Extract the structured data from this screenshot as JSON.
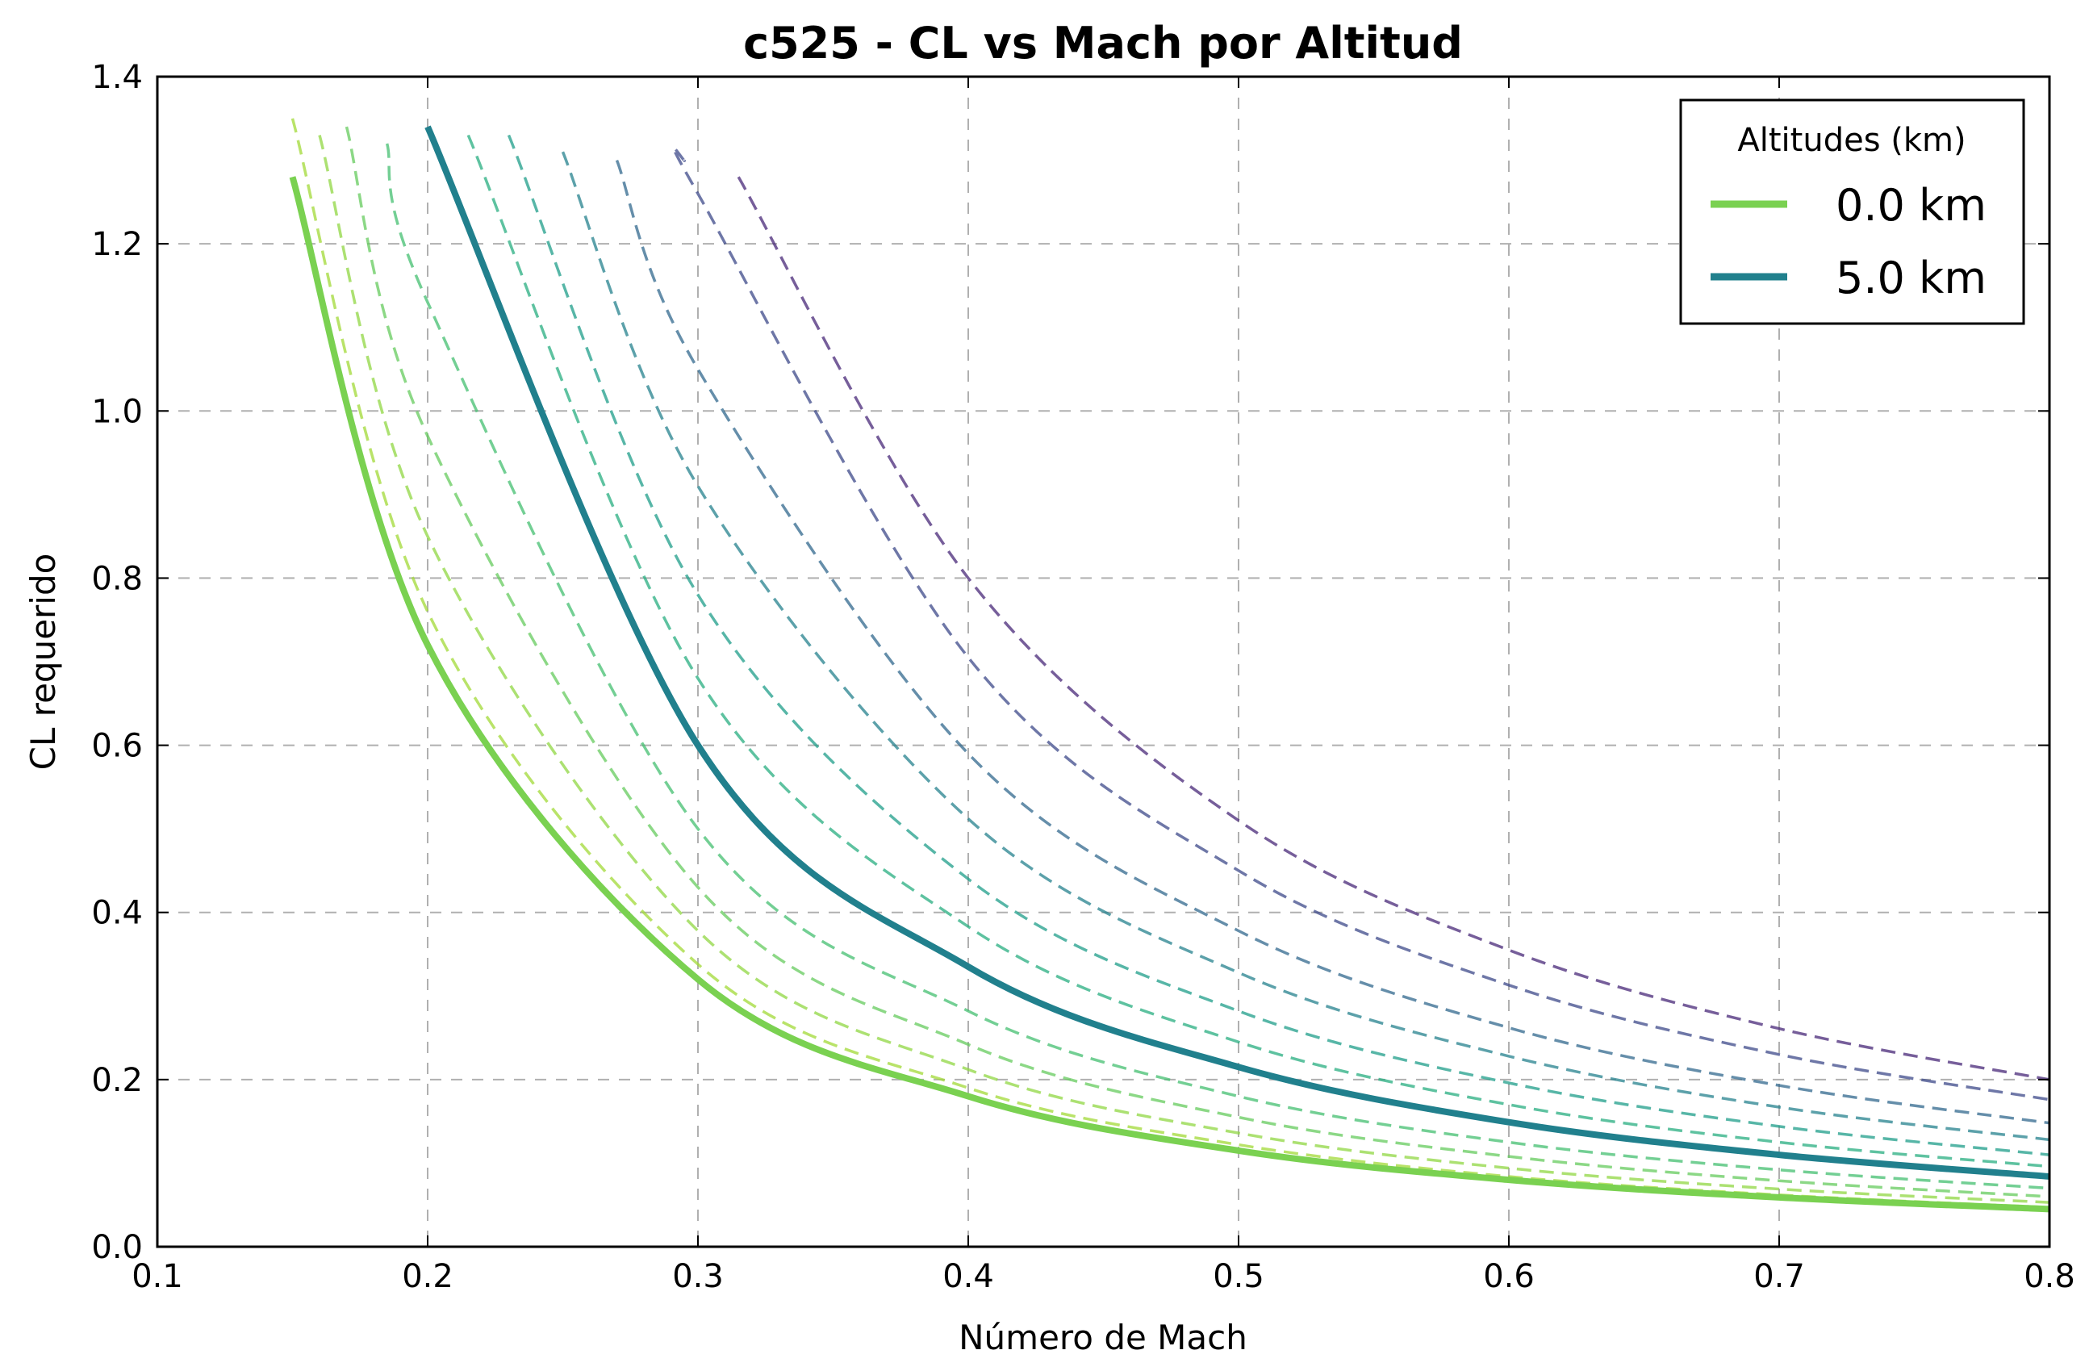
{
  "chart_data": {
    "type": "line",
    "title": "c525 - CL vs Mach por Altitud",
    "xlabel": "Número de Mach",
    "ylabel": "CL requerido",
    "xlim": [
      0.1,
      0.8
    ],
    "ylim": [
      0.0,
      1.4
    ],
    "xticks": [
      "0.1",
      "0.2",
      "0.3",
      "0.4",
      "0.5",
      "0.6",
      "0.7",
      "0.8"
    ],
    "yticks": [
      "0.0",
      "0.2",
      "0.4",
      "0.6",
      "0.8",
      "1.0",
      "1.2",
      "1.4"
    ],
    "grid": true,
    "legend": {
      "title": "Altitudes (km)",
      "placement": "top-right"
    },
    "series": [
      {
        "name": "0.0 km",
        "style": "solid",
        "color": "#7ad151",
        "x": [
          0.15,
          0.2,
          0.3,
          0.4,
          0.5,
          0.6,
          0.7,
          0.8
        ],
        "y": [
          1.28,
          0.72,
          0.32,
          0.18,
          0.115,
          0.08,
          0.059,
          0.045
        ]
      },
      {
        "name": "5.0 km",
        "style": "solid",
        "color": "#21808d",
        "x": [
          0.2,
          0.3,
          0.4,
          0.5,
          0.6,
          0.7,
          0.8
        ],
        "y": [
          1.34,
          0.6,
          0.335,
          0.215,
          0.149,
          0.11,
          0.084
        ]
      },
      {
        "style": "dashed",
        "color": "#a2da37",
        "x": [
          0.15,
          0.2,
          0.3,
          0.4,
          0.5,
          0.6,
          0.7,
          0.8
        ],
        "y": [
          1.35,
          0.76,
          0.338,
          0.19,
          0.122,
          0.084,
          0.062,
          0.047
        ]
      },
      {
        "style": "dashed",
        "color": "#90d743",
        "x": [
          0.16,
          0.2,
          0.3,
          0.4,
          0.5,
          0.6,
          0.7,
          0.8
        ],
        "y": [
          1.33,
          0.85,
          0.378,
          0.212,
          0.136,
          0.094,
          0.069,
          0.053
        ]
      },
      {
        "style": "dashed",
        "color": "#66cb5d",
        "x": [
          0.17,
          0.2,
          0.3,
          0.4,
          0.5,
          0.6,
          0.7,
          0.8
        ],
        "y": [
          1.34,
          0.97,
          0.43,
          0.242,
          0.155,
          0.108,
          0.079,
          0.06
        ]
      },
      {
        "style": "dashed",
        "color": "#44bf70",
        "x": [
          0.185,
          0.2,
          0.3,
          0.4,
          0.5,
          0.6,
          0.7,
          0.8
        ],
        "y": [
          1.32,
          1.13,
          0.5,
          0.282,
          0.18,
          0.125,
          0.092,
          0.07
        ]
      },
      {
        "style": "dashed",
        "color": "#28ae80",
        "x": [
          0.215,
          0.3,
          0.4,
          0.5,
          0.6,
          0.7,
          0.8
        ],
        "y": [
          1.33,
          0.68,
          0.383,
          0.245,
          0.17,
          0.125,
          0.096
        ]
      },
      {
        "style": "dashed",
        "color": "#1f9e89",
        "x": [
          0.23,
          0.3,
          0.4,
          0.5,
          0.6,
          0.7,
          0.8
        ],
        "y": [
          1.33,
          0.78,
          0.44,
          0.282,
          0.196,
          0.144,
          0.11
        ]
      },
      {
        "style": "dashed",
        "color": "#26828e",
        "x": [
          0.25,
          0.3,
          0.4,
          0.5,
          0.6,
          0.7,
          0.8
        ],
        "y": [
          1.31,
          0.91,
          0.512,
          0.328,
          0.228,
          0.167,
          0.128
        ]
      },
      {
        "style": "dashed",
        "color": "#31688e",
        "x": [
          0.27,
          0.3,
          0.4,
          0.5,
          0.6,
          0.7,
          0.8
        ],
        "y": [
          1.3,
          1.05,
          0.59,
          0.378,
          0.262,
          0.193,
          0.148
        ]
      },
      {
        "style": "dashed",
        "color": "#3e4989",
        "x": [
          0.295,
          0.3,
          0.4,
          0.5,
          0.6,
          0.7,
          0.8
        ],
        "y": [
          1.3,
          1.26,
          0.705,
          0.45,
          0.313,
          0.23,
          0.176
        ]
      },
      {
        "style": "dashed",
        "color": "#482878",
        "x": [
          0.315,
          0.4,
          0.5,
          0.6,
          0.7,
          0.8
        ],
        "y": [
          1.28,
          0.8,
          0.51,
          0.355,
          0.261,
          0.2
        ]
      }
    ]
  }
}
